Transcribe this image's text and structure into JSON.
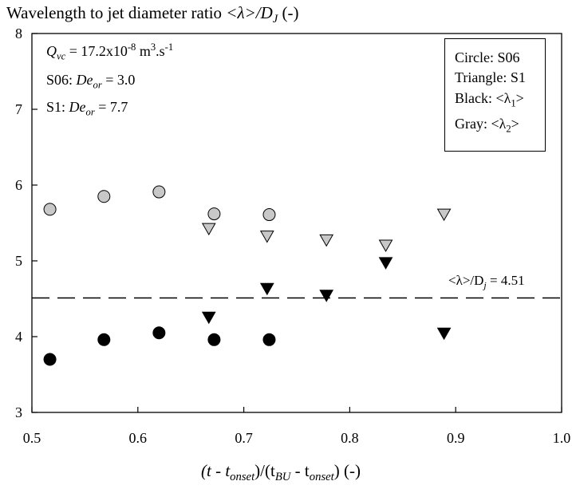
{
  "chart_data": {
    "type": "scatter",
    "title": {
      "prefix": "Wavelength to jet diameter ratio ",
      "lambda_expr": "<λ>/D",
      "sub": "J",
      "suffix": " (-)"
    },
    "xlabel": {
      "p1": "(t - t",
      "s1": "onset",
      "p2": ")/(t",
      "s2": "BU",
      "p3": " - t",
      "s3": "onset",
      "p4": ") (-)"
    },
    "xlim": [
      0.5,
      1.0
    ],
    "ylim": [
      3,
      8
    ],
    "xticks": [
      0.5,
      0.6,
      0.7,
      0.8,
      0.9,
      1.0
    ],
    "yticks": [
      3,
      4,
      5,
      6,
      7,
      8
    ],
    "xtick_labels": [
      "0.5",
      "0.6",
      "0.7",
      "0.8",
      "0.9",
      "1.0"
    ],
    "ytick_labels": [
      "3",
      "4",
      "5",
      "6",
      "7",
      "8"
    ],
    "series": [
      {
        "marker": "circle",
        "fill": "#c8c8c8",
        "x": [
          0.517,
          0.568,
          0.62,
          0.672,
          0.724
        ],
        "y": [
          5.68,
          5.85,
          5.91,
          5.62,
          5.61
        ]
      },
      {
        "marker": "circle",
        "fill": "#000000",
        "x": [
          0.517,
          0.568,
          0.62,
          0.672,
          0.724
        ],
        "y": [
          3.7,
          3.96,
          4.05,
          3.96,
          3.96
        ]
      },
      {
        "marker": "triangle-down",
        "fill": "#c8c8c8",
        "x": [
          0.667,
          0.722,
          0.778,
          0.834,
          0.889
        ],
        "y": [
          5.43,
          5.33,
          5.28,
          5.21,
          5.62
        ]
      },
      {
        "marker": "triangle-down",
        "fill": "#000000",
        "x": [
          0.667,
          0.722,
          0.778,
          0.834,
          0.889
        ],
        "y": [
          4.26,
          4.64,
          4.55,
          4.98,
          4.05
        ]
      }
    ],
    "reference_line": {
      "y": 4.51,
      "style": "dashed",
      "label_pre": "<λ>/D",
      "label_sub": "j",
      "label_post": " = 4.51"
    },
    "annotations": {
      "q_pre": "Q",
      "q_sub": "vc",
      "q_mid": " = 17.2x10",
      "q_sup": "-8",
      "q_mid2": " m",
      "q_sup2": "3",
      "q_mid3": ".s",
      "q_sup3": "-1",
      "s06_pre": "S06: ",
      "s06_de": "De",
      "s06_sub": "or",
      "s06_val": " = 3.0",
      "s1_pre": "S1: ",
      "s1_de": "De",
      "s1_sub": "or",
      "s1_val": " = 7.7"
    },
    "legend": {
      "placement": "top-right",
      "circle": "Circle: S06",
      "triangle": "Triangle: S1",
      "black_pre": "Black: <λ",
      "black_sub": "1",
      "black_post": ">",
      "gray_pre": "Gray: <λ",
      "gray_sub": "2",
      "gray_post": ">"
    },
    "grid": false
  }
}
